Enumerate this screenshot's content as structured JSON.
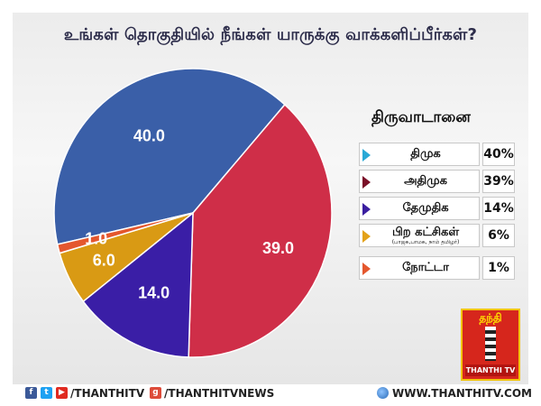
{
  "title": "உங்கள் தொகுதியில் நீங்கள் யாருக்கு வாக்களிப்பீர்கள்?",
  "legend_title": "திருவாடானை",
  "chart_data": {
    "type": "pie",
    "title": "உங்கள் தொகுதியில் நீங்கள் யாருக்கு வாக்களிப்பீர்கள்?",
    "slices": [
      {
        "label": "திமுக",
        "value": 40.0,
        "display": "40.0",
        "pct_label": "40%",
        "color": "#3a5fa8"
      },
      {
        "label": "அதிமுக",
        "value": 39.0,
        "display": "39.0",
        "pct_label": "39%",
        "color": "#cf2e48"
      },
      {
        "label": "தேமுதிக",
        "value": 14.0,
        "display": "14.0",
        "pct_label": "14%",
        "color": "#3a1ea6"
      },
      {
        "label": "பிற கட்சிகள்",
        "sublabel": "(பாஜக,பாமக, நாம் தமிழர்)",
        "value": 6.0,
        "display": "6.0",
        "pct_label": "6%",
        "color": "#d99a14"
      },
      {
        "label": "நோட்டா",
        "value": 1.0,
        "display": "1.0",
        "pct_label": "1%",
        "color": "#e4572e"
      }
    ],
    "legend_placement": "right"
  },
  "legend_triangle_colors": [
    "#2aa9d6",
    "#7a1028",
    "#3b1fa0",
    "#e3a21a",
    "#e4572e"
  ],
  "logo": {
    "top_text": "தந்தி",
    "bottom_text": "THANTHI TV"
  },
  "footer": {
    "handle_left": "/THANTHITV",
    "handle_mid": "/THANTHITVNEWS",
    "website": "WWW.THANTHITV.COM",
    "icons": [
      "facebook-icon",
      "twitter-icon",
      "youtube-icon",
      "googleplus-icon",
      "globe-icon"
    ]
  }
}
